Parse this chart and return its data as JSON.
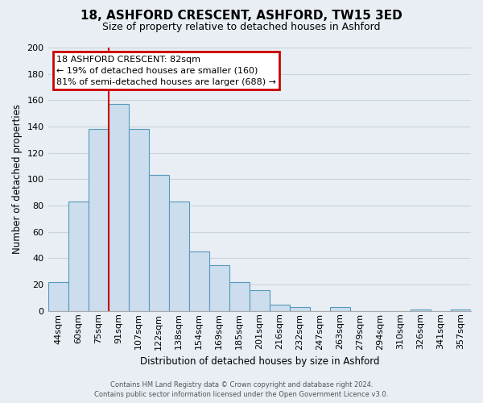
{
  "title": "18, ASHFORD CRESCENT, ASHFORD, TW15 3ED",
  "subtitle": "Size of property relative to detached houses in Ashford",
  "xlabel": "Distribution of detached houses by size in Ashford",
  "ylabel": "Number of detached properties",
  "bar_labels": [
    "44sqm",
    "60sqm",
    "75sqm",
    "91sqm",
    "107sqm",
    "122sqm",
    "138sqm",
    "154sqm",
    "169sqm",
    "185sqm",
    "201sqm",
    "216sqm",
    "232sqm",
    "247sqm",
    "263sqm",
    "279sqm",
    "294sqm",
    "310sqm",
    "326sqm",
    "341sqm",
    "357sqm"
  ],
  "bar_heights": [
    22,
    83,
    138,
    157,
    138,
    103,
    83,
    45,
    35,
    22,
    16,
    5,
    3,
    0,
    3,
    0,
    0,
    0,
    1,
    0,
    1
  ],
  "bar_color": "#ccdded",
  "bar_edge_color": "#5599bb",
  "ylim": [
    0,
    200
  ],
  "yticks": [
    0,
    20,
    40,
    60,
    80,
    100,
    120,
    140,
    160,
    180,
    200
  ],
  "red_line_index": 2.5,
  "annotation_title": "18 ASHFORD CRESCENT: 82sqm",
  "annotation_line1": "← 19% of detached houses are smaller (160)",
  "annotation_line2": "81% of semi-detached houses are larger (688) →",
  "footer_line1": "Contains HM Land Registry data © Crown copyright and database right 2024.",
  "footer_line2": "Contains public sector information licensed under the Open Government Licence v3.0.",
  "background_color": "#e8eef4",
  "plot_bg_color": "#e8eef4",
  "grid_color": "#c8d4de",
  "annotation_box_color": "#ffffff",
  "annotation_box_edge": "#cc0000",
  "red_line_color": "#cc0000",
  "title_fontsize": 11,
  "subtitle_fontsize": 9
}
